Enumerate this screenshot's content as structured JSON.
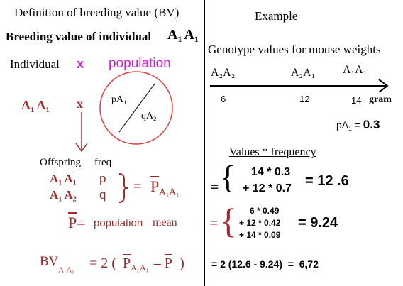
{
  "left": {
    "definition_title": "Definition of breeding value (BV)",
    "bv_of_individual": "Breeding value of individual",
    "genotype_A1": "A",
    "genotype_sub1": "1",
    "genotype_A2": "A",
    "genotype_sub2": "1",
    "individual_label": "Individual",
    "cross_symbol": "x",
    "population_label": "population",
    "row2_a": "A",
    "row2_sub_a": "1",
    "row2_b": "A",
    "row2_sub_b": "1",
    "row2_x": "x",
    "circle_pA": "pA",
    "circle_pA_sub": "1",
    "circle_qA": "qA",
    "circle_qA_sub": "2",
    "offspring_label": "Offspring",
    "freq_label": "freq",
    "off1_a": "A",
    "off1_sa": "1",
    "off1_b": "A",
    "off1_sb": "1",
    "off1_freq": "p",
    "off2_a": "A",
    "off2_sa": "1",
    "off2_b": "A",
    "off2_sb": "2",
    "off2_freq": "q",
    "equals": "=",
    "pbar_P": "P",
    "pbar_sub": "A₁A₁",
    "pmean_P": "P",
    "pmean_eq": "=",
    "pmean_population": "population",
    "pmean_mean": "mean",
    "bv_label": "BV",
    "bv_sub": "A₁A₁",
    "bv_eq": "= 2 (",
    "bv_P1": "P",
    "bv_P1_sub": "A₁A₁",
    "bv_minus": "–",
    "bv_P2": "P",
    "bv_close": ")"
  },
  "right": {
    "example_title": "Example",
    "genotype_values_label": "Genotype values for mouse weights",
    "geno1": "A₂A₂",
    "geno2": "A₂A₁",
    "geno3": "A₁A₁",
    "val1": "6",
    "val2": "12",
    "val3": "14",
    "unit": "gram",
    "pA1_label": "pA",
    "pA1_sub": "1",
    "pA1_eq": "=",
    "pA1_value": "0.3",
    "values_freq_label": "Values * frequency",
    "calc1_line1": "14 * 0.3",
    "calc1_line2": "+ 12 * 0.7",
    "calc1_result": "= 12 .6",
    "calc2_line1": "6 * 0.49",
    "calc2_line2": "+ 12 * 0.42",
    "calc2_line3": "+ 14 * 0.09",
    "calc2_result": "= 9.24",
    "final_line": "= 2 (12.6 - 9.24)  =  6,72",
    "eq_sign": "="
  },
  "colors": {
    "dark_red": "#9b2a2a",
    "magenta": "#d61ed6",
    "circle_red": "#e04040"
  }
}
